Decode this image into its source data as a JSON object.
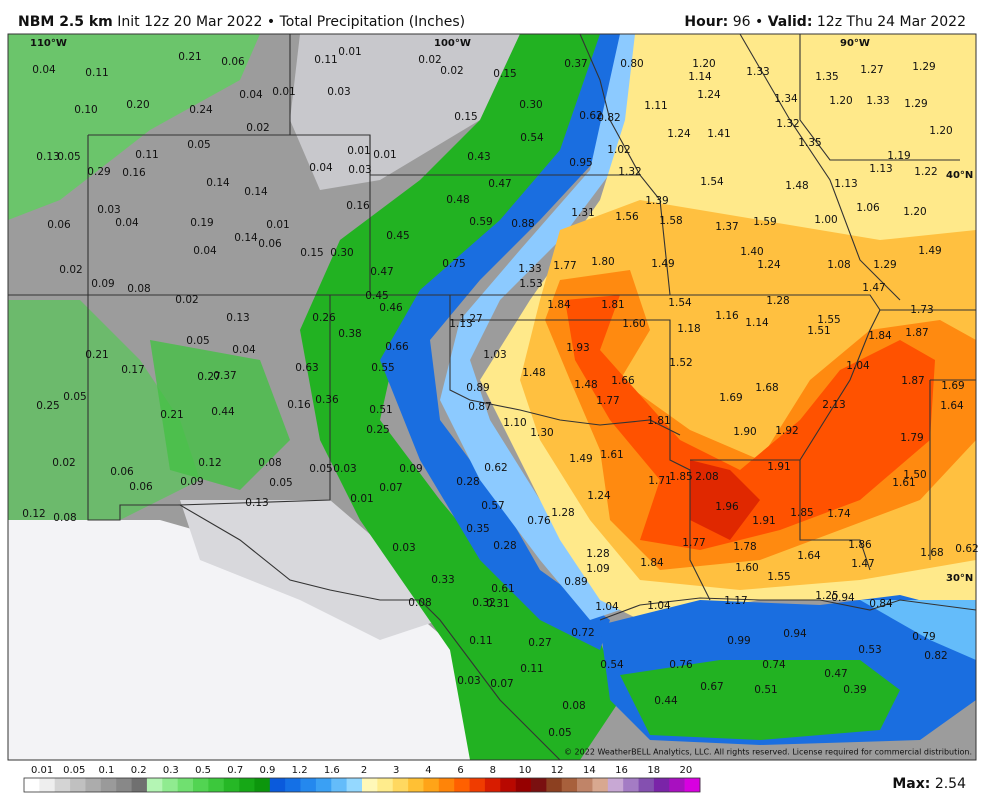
{
  "header": {
    "model": "NBM 2.5 km",
    "init": "Init 12z 20 Mar 2022 • Total Precipitation (Inches)",
    "hour_label": "Hour:",
    "hour": "96",
    "separator": "•",
    "valid_label": "Valid:",
    "valid": "12z Thu 24 Mar 2022"
  },
  "coords": [
    "110°W",
    "100°W",
    "90°W",
    "40°N",
    "30°N"
  ],
  "map": {
    "labels": [
      "0.04",
      "0.11",
      "0.21",
      "0.06",
      "0.20",
      "0.10",
      "0.24",
      "0.04",
      "0.01",
      "0.03",
      "0.11",
      "0.01",
      "0.02",
      "0.02",
      "0.15",
      "0.37",
      "0.80",
      "1.20",
      "1.14",
      "1.33",
      "1.24",
      "1.11",
      "1.34",
      "1.35",
      "1.27",
      "1.29",
      "1.20",
      "1.33",
      "1.29",
      "1.20",
      "0.02",
      "0.15",
      "0.30",
      "0.54",
      "0.62",
      "0.82",
      "1.24",
      "1.41",
      "1.32",
      "1.35",
      "1.19",
      "0.13",
      "0.05",
      "0.11",
      "0.05",
      "0.01",
      "0.01",
      "0.43",
      "0.95",
      "1.02",
      "0.29",
      "0.16",
      "0.14",
      "0.14",
      "0.04",
      "0.03",
      "1.32",
      "1.54",
      "1.48",
      "1.13",
      "1.13",
      "1.22",
      "0.47",
      "0.16",
      "0.48",
      "0.03",
      "0.04",
      "0.19",
      "0.01",
      "0.06",
      "0.59",
      "0.88",
      "1.31",
      "1.56",
      "1.39",
      "1.58",
      "1.37",
      "1.59",
      "1.00",
      "1.06",
      "1.20",
      "0.45",
      "0.14",
      "0.06",
      "0.04",
      "0.15",
      "0.30",
      "1.40",
      "1.49",
      "0.75",
      "1.33",
      "1.77",
      "1.80",
      "1.49",
      "1.24",
      "1.08",
      "1.29",
      "0.02",
      "0.47",
      "1.53",
      "0.09",
      "0.08",
      "1.47",
      "0.45",
      "0.02",
      "0.46",
      "1.84",
      "1.81",
      "1.54",
      "1.28",
      "1.73",
      "0.13",
      "0.26",
      "1.27",
      "1.13",
      "1.60",
      "1.18",
      "1.16",
      "1.14",
      "1.51",
      "1.55",
      "1.84",
      "1.87",
      "0.38",
      "0.05",
      "0.04",
      "0.66",
      "1.03",
      "1.93",
      "0.21",
      "1.52",
      "1.04",
      "0.63",
      "0.55",
      "1.48",
      "0.17",
      "0.27",
      "0.37",
      "1.66",
      "1.48",
      "0.89",
      "1.68",
      "1.87",
      "1.69",
      "0.05",
      "0.36",
      "1.77",
      "1.69",
      "0.25",
      "0.16",
      "0.87",
      "0.51",
      "2.13",
      "1.64",
      "0.21",
      "0.44",
      "1.10",
      "1.81",
      "1.30",
      "0.25",
      "1.90",
      "1.92",
      "1.79",
      "0.12",
      "0.08",
      "1.49",
      "1.61",
      "0.02",
      "0.05",
      "0.03",
      "0.09",
      "0.62",
      "1.91",
      "0.06",
      "1.50",
      "0.28",
      "1.71",
      "1.85",
      "2.08",
      "0.06",
      "0.09",
      "0.05",
      "0.07",
      "1.61",
      "1.24",
      "0.01",
      "0.57",
      "0.13",
      "1.96",
      "1.28",
      "1.85",
      "1.74",
      "0.12",
      "0.08",
      "0.76",
      "1.91",
      "0.35",
      "1.77",
      "0.28",
      "1.78",
      "1.86",
      "0.03",
      "1.28",
      "1.68",
      "0.62",
      "1.09",
      "1.84",
      "1.64",
      "1.47",
      "1.60",
      "1.55",
      "0.33",
      "0.89",
      "0.61",
      "1.25",
      "0.94",
      "0.84",
      "1.17",
      "0.08",
      "0.32",
      "0.31",
      "1.04",
      "1.04",
      "0.11",
      "0.27",
      "0.72",
      "0.99",
      "0.94",
      "0.79",
      "0.82",
      "0.53",
      "0.54",
      "0.76",
      "0.74",
      "0.11",
      "0.47",
      "0.03",
      "0.07",
      "0.67",
      "0.51",
      "0.39",
      "0.44",
      "0.08",
      "0.05"
    ]
  },
  "copyright": "© 2022 WeatherBELL Analytics, LLC. All rights reserved. License required for commercial distribution.",
  "colorbar": {
    "labels": [
      "0.01",
      "0.05",
      "0.1",
      "0.2",
      "0.3",
      "0.5",
      "0.7",
      "0.9",
      "1.2",
      "1.6",
      "2",
      "3",
      "4",
      "6",
      "8",
      "10",
      "12",
      "14",
      "16",
      "18",
      "20"
    ],
    "colors": [
      "#ffffff",
      "#eeeeee",
      "#d4d4d4",
      "#c0c0c0",
      "#acacac",
      "#9a9a9a",
      "#888888",
      "#707070",
      "#b4f5b4",
      "#90eb90",
      "#70e070",
      "#52d452",
      "#3cc83c",
      "#26b826",
      "#16a816",
      "#0c960c",
      "#0a5adc",
      "#1470e6",
      "#2488ee",
      "#3aa0f4",
      "#64bcfa",
      "#94d8ff",
      "#fff8b8",
      "#ffec8c",
      "#ffd860",
      "#ffc034",
      "#ffa418",
      "#ff8408",
      "#ff6000",
      "#f03c00",
      "#d81c00",
      "#b80800",
      "#960000",
      "#7a1010",
      "#8c4020",
      "#a8603c",
      "#c08468",
      "#d8a890",
      "#c8a8d4",
      "#a47cc4",
      "#8450b0",
      "#7a24a8",
      "#a810c0",
      "#d800e0"
    ]
  },
  "footer": {
    "max_label": "Max:",
    "max": "2.54"
  }
}
